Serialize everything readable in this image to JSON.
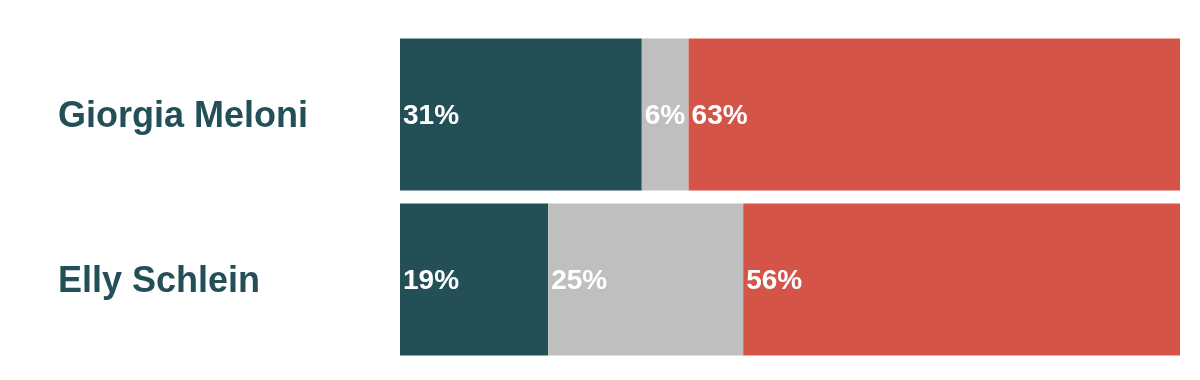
{
  "chart_data": {
    "type": "bar",
    "orientation": "horizontal",
    "stacked": true,
    "categories": [
      "Giorgia Meloni",
      "Elly Schlein"
    ],
    "series": [
      {
        "color": "#234f57",
        "values": [
          31,
          19
        ],
        "value_labels": [
          "31%",
          "19%"
        ]
      },
      {
        "color": "#bfbfbf",
        "values": [
          6,
          25
        ],
        "value_labels": [
          "6%",
          "25%"
        ]
      },
      {
        "color": "#d55448",
        "values": [
          63,
          56
        ],
        "value_labels": [
          "63%",
          "56%"
        ]
      }
    ]
  }
}
